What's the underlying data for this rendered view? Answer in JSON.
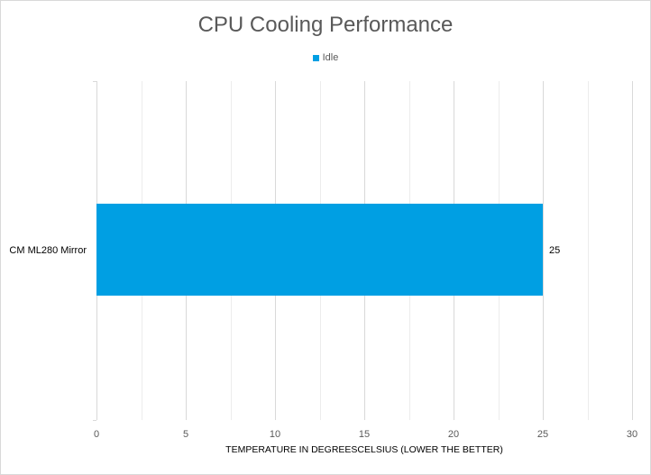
{
  "chart_data": {
    "type": "bar",
    "orientation": "horizontal",
    "title": "CPU Cooling Performance",
    "categories": [
      "CM ML280 Mirror"
    ],
    "series": [
      {
        "name": "Idle",
        "values": [
          25
        ],
        "color": "#009fe3"
      }
    ],
    "data_labels": [
      "25"
    ],
    "xlabel": "TEMPERATURE IN DEGREESCELSIUS (LOWER THE BETTER)",
    "ylabel": "",
    "xlim": [
      0,
      30
    ],
    "xticks": [
      0,
      5,
      10,
      15,
      20,
      25,
      30
    ],
    "minor_grid_step": 2.5,
    "grid": true,
    "legend_position": "top"
  }
}
